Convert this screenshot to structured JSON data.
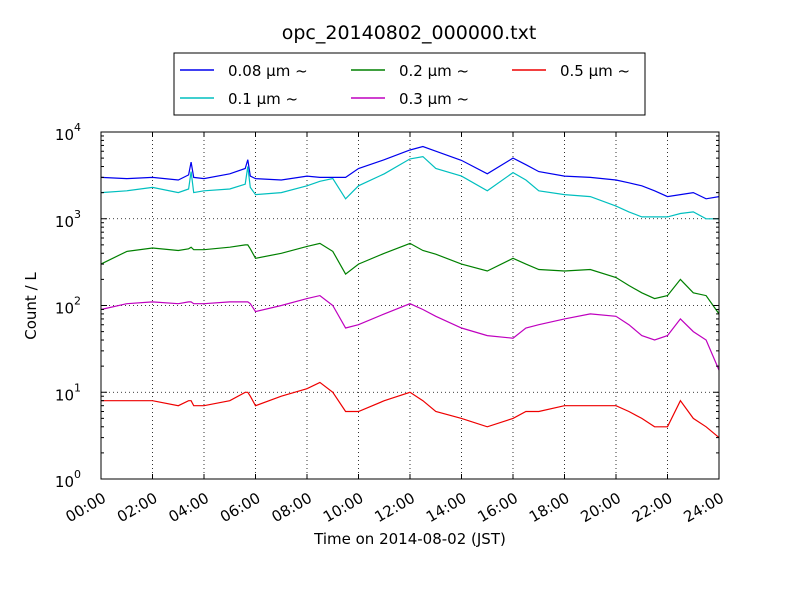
{
  "chart_data": {
    "type": "line",
    "title": "opc_20140802_000000.txt",
    "xlabel": "Time on 2014-08-02 (JST)",
    "ylabel": "Count / L",
    "yscale": "log",
    "ylim": [
      1,
      10000
    ],
    "xlim_hours": [
      0,
      24
    ],
    "x_ticks": [
      "00:00",
      "02:00",
      "04:00",
      "06:00",
      "08:00",
      "10:00",
      "12:00",
      "14:00",
      "16:00",
      "18:00",
      "20:00",
      "22:00",
      "24:00"
    ],
    "y_ticks": [
      {
        "base": "10",
        "exp": "0",
        "value": 1
      },
      {
        "base": "10",
        "exp": "1",
        "value": 10
      },
      {
        "base": "10",
        "exp": "2",
        "value": 100
      },
      {
        "base": "10",
        "exp": "3",
        "value": 1000
      },
      {
        "base": "10",
        "exp": "4",
        "value": 10000
      }
    ],
    "grid": true,
    "legend_position": "top-center",
    "x_hours": [
      0,
      1,
      2,
      3,
      3.4,
      3.5,
      3.6,
      4,
      5,
      5.6,
      5.7,
      5.8,
      6,
      7,
      8,
      8.5,
      9,
      9.5,
      10,
      11,
      12,
      12.5,
      13,
      14,
      15,
      16,
      16.5,
      17,
      18,
      19,
      20,
      20.5,
      21,
      21.5,
      22,
      22.5,
      23,
      23.5,
      24
    ],
    "series": [
      {
        "name": "0.08 μm ~",
        "color": "#0000ee",
        "values": [
          3000,
          2900,
          3000,
          2800,
          3200,
          4500,
          3000,
          2900,
          3300,
          3800,
          4800,
          3100,
          2900,
          2800,
          3100,
          3000,
          3000,
          3000,
          3800,
          4800,
          6200,
          6800,
          6000,
          4700,
          3300,
          5000,
          4200,
          3500,
          3100,
          3000,
          2800,
          2600,
          2400,
          2100,
          1800,
          1900,
          2000,
          1700,
          1800
        ]
      },
      {
        "name": "0.1 μm ~",
        "color": "#00bfbf",
        "values": [
          2000,
          2100,
          2300,
          2000,
          2200,
          3500,
          2000,
          2100,
          2200,
          2500,
          4000,
          2300,
          1900,
          2000,
          2400,
          2700,
          2900,
          1700,
          2400,
          3300,
          4900,
          5200,
          3800,
          3100,
          2100,
          3400,
          2800,
          2100,
          1900,
          1800,
          1400,
          1200,
          1050,
          1050,
          1050,
          1150,
          1200,
          1000,
          1000
        ]
      },
      {
        "name": "0.2 μm ~",
        "color": "#008000",
        "values": [
          300,
          420,
          460,
          430,
          450,
          470,
          440,
          440,
          470,
          500,
          500,
          450,
          350,
          400,
          480,
          520,
          420,
          230,
          300,
          400,
          520,
          430,
          390,
          300,
          250,
          350,
          300,
          260,
          250,
          260,
          210,
          170,
          140,
          120,
          130,
          200,
          140,
          130,
          80
        ]
      },
      {
        "name": "0.3 μm ~",
        "color": "#bf00bf",
        "values": [
          90,
          105,
          110,
          105,
          110,
          110,
          105,
          105,
          110,
          110,
          110,
          105,
          85,
          100,
          120,
          130,
          100,
          55,
          60,
          80,
          105,
          90,
          75,
          55,
          45,
          42,
          55,
          60,
          70,
          80,
          75,
          60,
          45,
          40,
          45,
          70,
          50,
          40,
          18
        ]
      },
      {
        "name": "0.5 μm ~",
        "color": "#ee0000",
        "values": [
          8,
          8,
          8,
          7,
          8,
          8,
          7,
          7,
          8,
          10,
          10,
          9,
          7,
          9,
          11,
          13,
          10,
          6,
          6,
          8,
          10,
          8,
          6,
          5,
          4,
          5,
          6,
          6,
          7,
          7,
          7,
          6,
          5,
          4,
          4,
          8,
          5,
          4,
          3
        ]
      }
    ]
  }
}
